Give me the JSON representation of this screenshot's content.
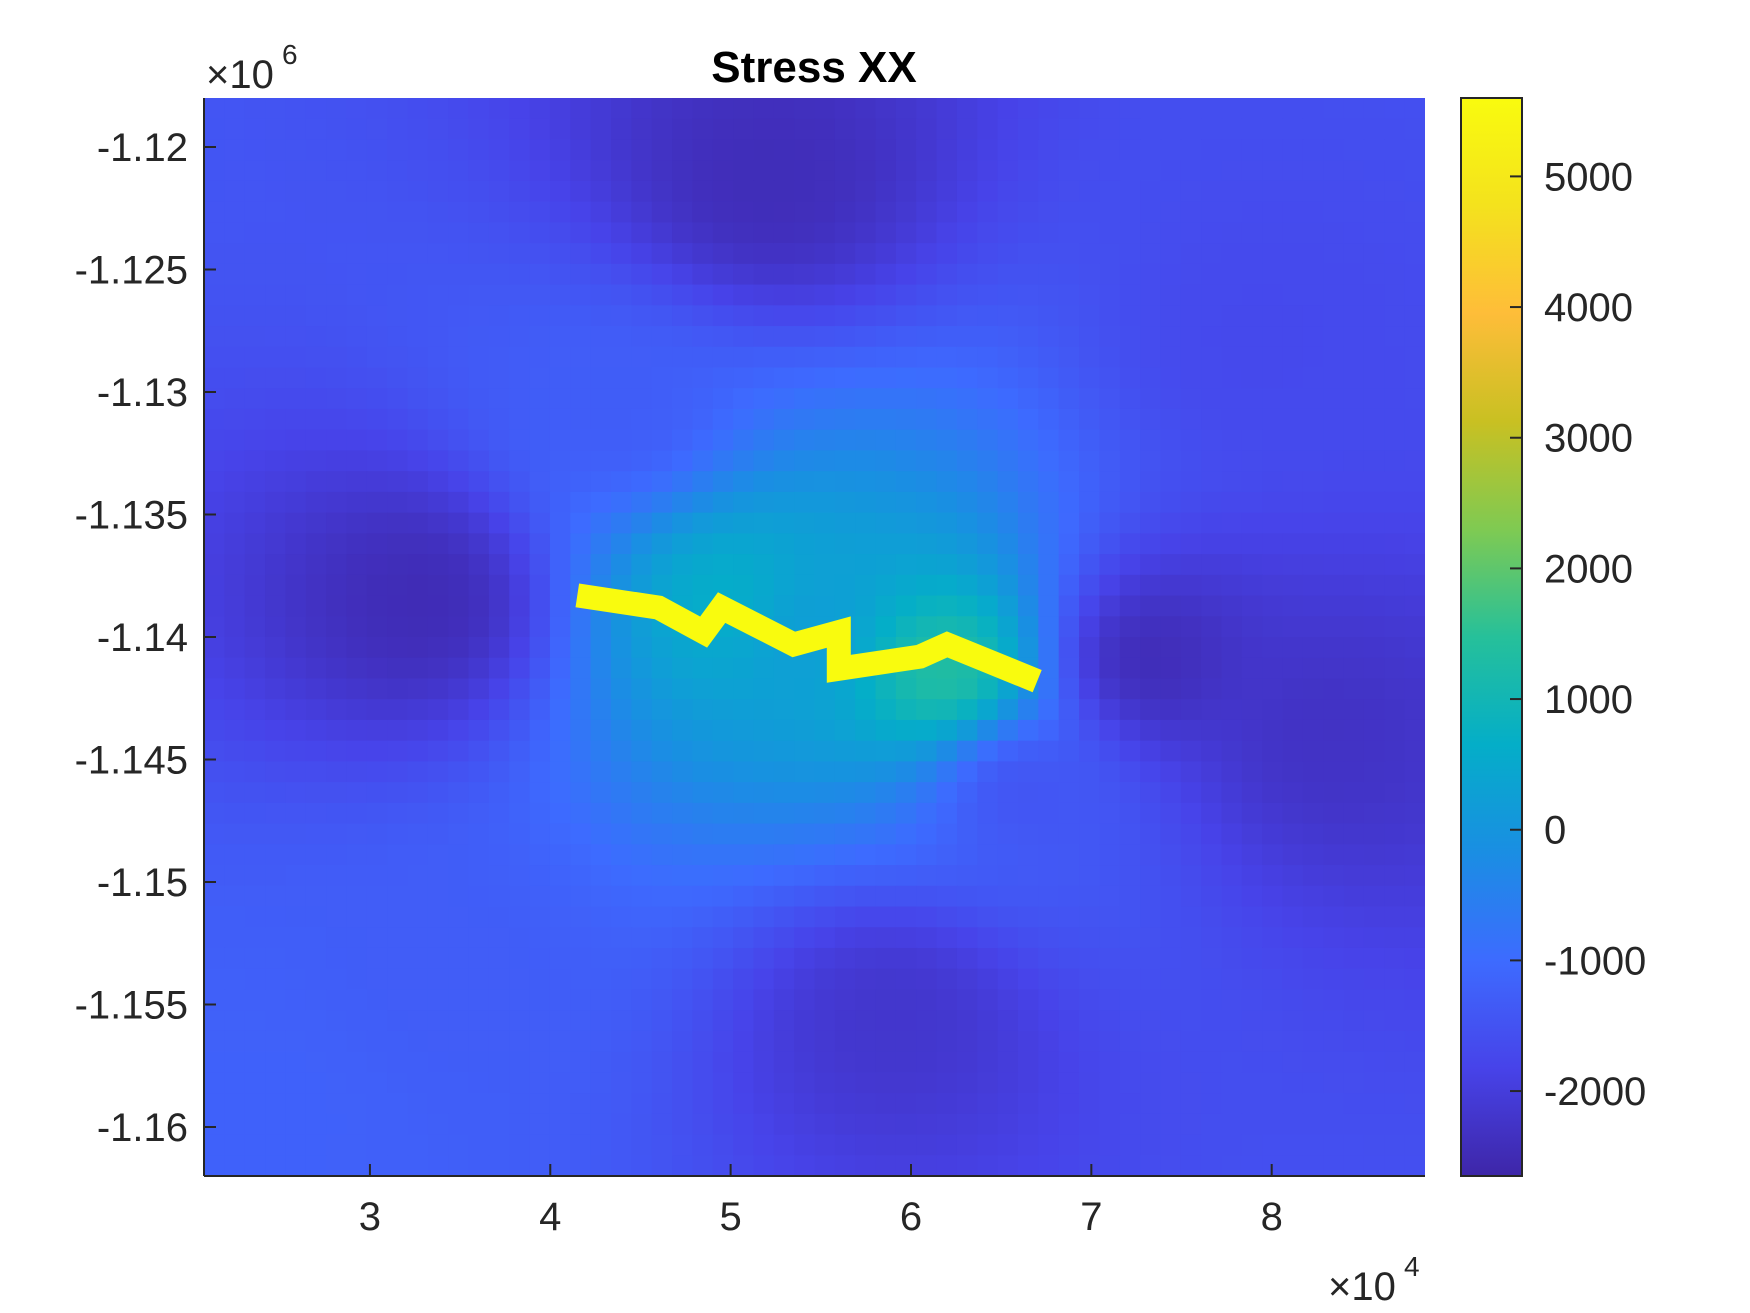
{
  "chart_data": {
    "type": "heatmap",
    "title": "Stress XX",
    "xlabel": "",
    "ylabel": "",
    "x_multiplier": {
      "base": "×10",
      "exponent": "4"
    },
    "y_multiplier": {
      "base": "×10",
      "exponent": "6"
    },
    "xlim": [
      2.08,
      8.85
    ],
    "ylim": [
      -1.162,
      -1.118
    ],
    "x_ticks": [
      3,
      4,
      5,
      6,
      7,
      8
    ],
    "x_tick_labels": [
      "3",
      "4",
      "5",
      "6",
      "7",
      "8"
    ],
    "y_ticks": [
      -1.12,
      -1.125,
      -1.13,
      -1.135,
      -1.14,
      -1.145,
      -1.15,
      -1.155,
      -1.16
    ],
    "y_tick_labels": [
      "-1.12",
      "-1.125",
      "-1.13",
      "-1.135",
      "-1.14",
      "-1.145",
      "-1.15",
      "-1.155",
      "-1.16"
    ],
    "colorbar": {
      "colormap": "parula",
      "range": [
        -2650,
        5600
      ],
      "ticks": [
        5000,
        4000,
        3000,
        2000,
        1000,
        0,
        -1000,
        -2000
      ],
      "tick_labels": [
        "5000",
        "4000",
        "3000",
        "2000",
        "1000",
        "0",
        "-1000",
        "-2000"
      ],
      "colors": [
        "#3E26A8",
        "#4743E9",
        "#3D6BFF",
        "#1A8EE3",
        "#04AEC8",
        "#26C09A",
        "#7FCA52",
        "#C9C022",
        "#FEBD39",
        "#F4E21D",
        "#F9FB0E"
      ]
    },
    "field_hotspots": [
      {
        "x": 3.3,
        "y": -1.1385,
        "value": -2500
      },
      {
        "x": 5.2,
        "y": -1.1215,
        "value": -2450
      },
      {
        "x": 7.3,
        "y": -1.141,
        "value": -2500
      },
      {
        "x": 8.3,
        "y": -1.144,
        "value": -2300
      },
      {
        "x": 5.9,
        "y": -1.1555,
        "value": -2200
      },
      {
        "x": 3.4,
        "y": -1.154,
        "value": -1300
      },
      {
        "x": 2.5,
        "y": -1.159,
        "value": -1200
      },
      {
        "x": 7.9,
        "y": -1.128,
        "value": -1700
      },
      {
        "x": 5.4,
        "y": -1.1395,
        "value": 200
      },
      {
        "x": 5.0,
        "y": -1.1385,
        "value": 700
      },
      {
        "x": 6.2,
        "y": -1.1415,
        "value": 1500
      },
      {
        "x": 4.4,
        "y": -1.131,
        "value": -1300
      },
      {
        "x": 6.6,
        "y": -1.146,
        "value": -1500
      }
    ],
    "fault_trace": {
      "label": "high-stress fracture line",
      "value": 5600,
      "points": [
        [
          4.15,
          -1.1383
        ],
        [
          4.6,
          -1.1388
        ],
        [
          4.85,
          -1.1398
        ],
        [
          4.95,
          -1.1388
        ],
        [
          5.35,
          -1.1403
        ],
        [
          5.6,
          -1.1398
        ],
        [
          5.6,
          -1.1413
        ],
        [
          6.05,
          -1.1408
        ],
        [
          6.2,
          -1.1403
        ],
        [
          6.7,
          -1.1418
        ]
      ]
    }
  }
}
